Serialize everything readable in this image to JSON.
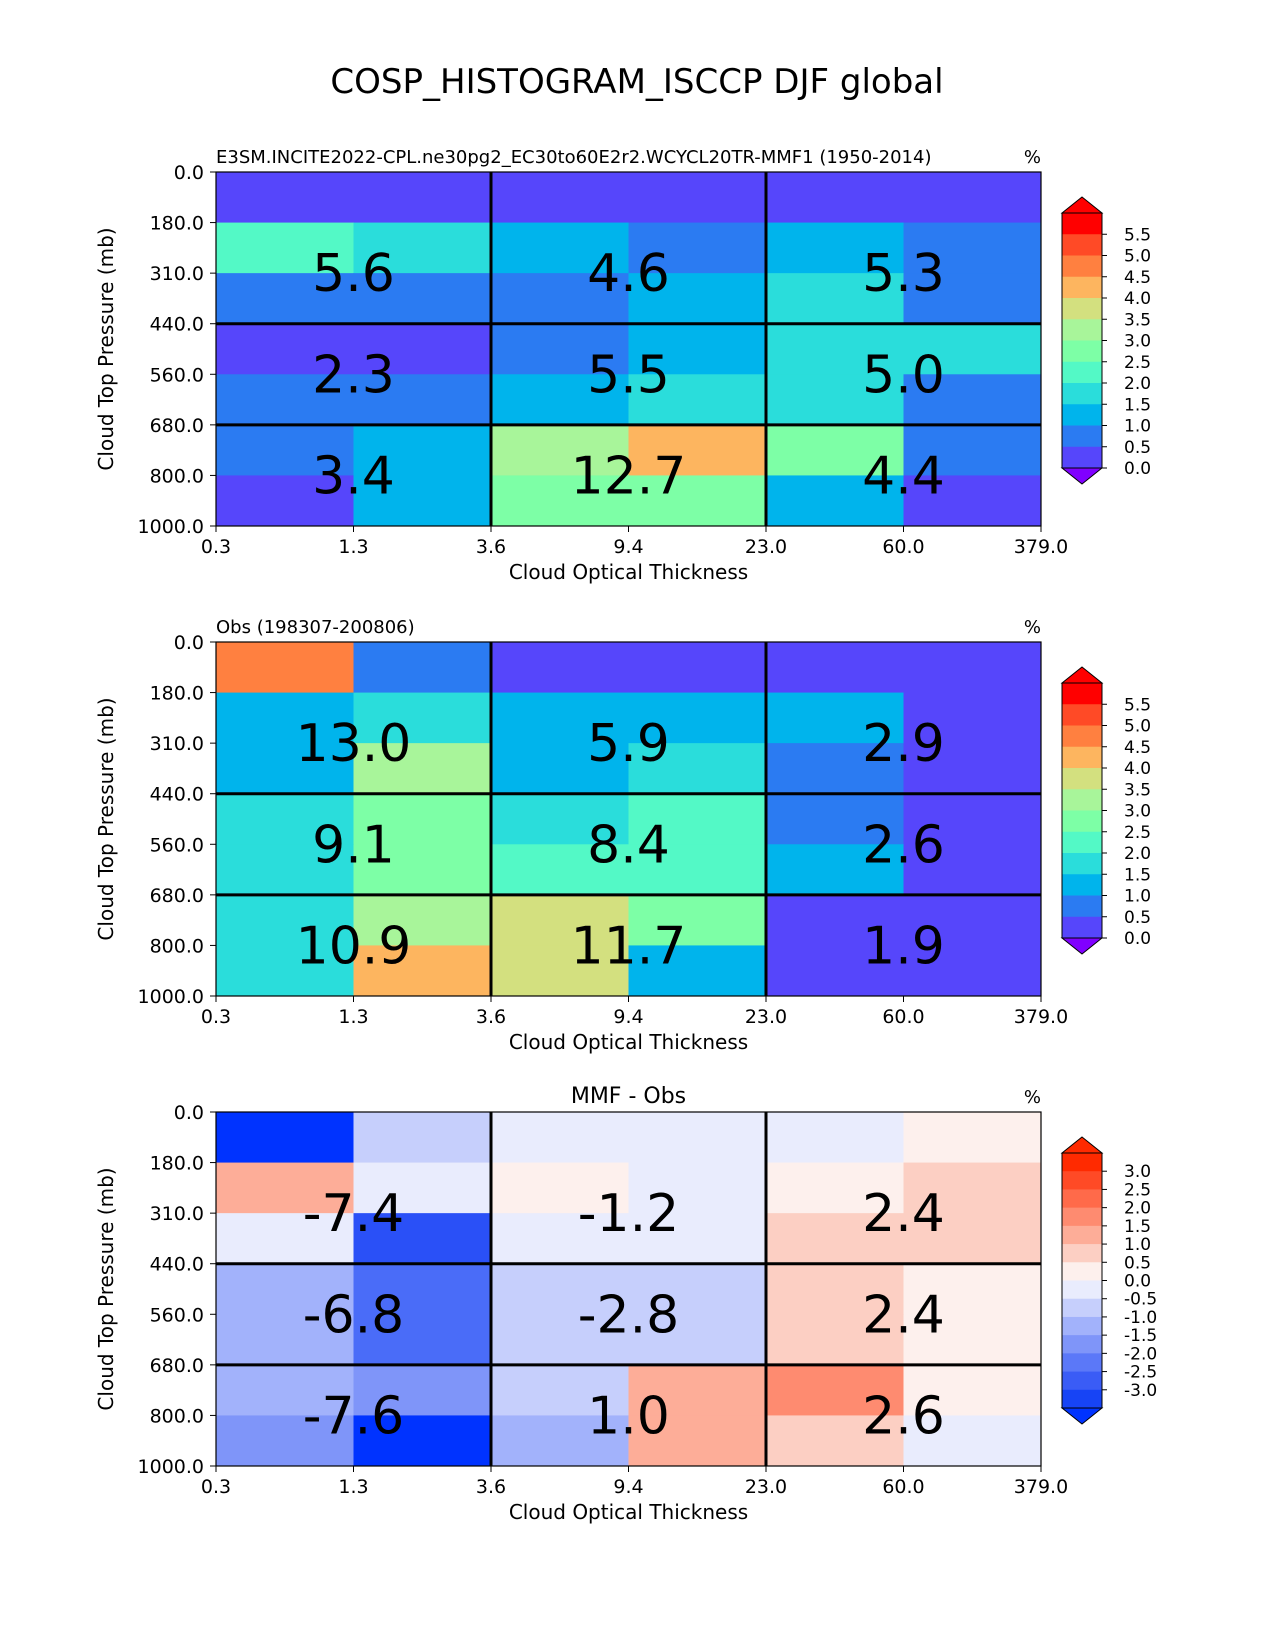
{
  "suptitle": "COSP_HISTOGRAM_ISCCP DJF global",
  "shared": {
    "xlabel": "Cloud Optical Thickness",
    "ylabel": "Cloud Top Pressure (mb)",
    "x_ticks": [
      "0.3",
      "1.3",
      "3.6",
      "9.4",
      "23.0",
      "60.0",
      "379.0"
    ],
    "y_ticks": [
      "0.0",
      "180.0",
      "310.0",
      "440.0",
      "560.0",
      "680.0",
      "800.0",
      "1000.0"
    ]
  },
  "chart_data": [
    {
      "type": "heatmap",
      "title_left": "E3SM.INCITE2022-CPL.ne30pg2_EC30to60E2r2.WCYCL20TR-MMF1 (1950-2014)",
      "title_center": "",
      "units": "%",
      "xlabel": "Cloud Optical Thickness",
      "ylabel": "Cloud Top Pressure (mb)",
      "colorbar": {
        "ticks": [
          "5.5",
          "5.0",
          "4.5",
          "4.0",
          "3.5",
          "3.0",
          "2.5",
          "2.0",
          "1.5",
          "1.0",
          "0.5",
          "0.0"
        ],
        "colors": [
          "#ff0000",
          "#ff4a26",
          "#ff8040",
          "#fdb55f",
          "#d3e07f",
          "#a8f59a",
          "#7dffa6",
          "#53f9c6",
          "#2adddb",
          "#00b4ec",
          "#2b7bf2",
          "#5646fb"
        ],
        "extend_top": "#ff0000",
        "extend_bottom": "#8000ff"
      },
      "cell_colors": [
        [
          "#5646fb",
          "#5646fb",
          "#5646fb",
          "#5646fb",
          "#5646fb",
          "#5646fb"
        ],
        [
          "#53f9c6",
          "#2adddb",
          "#00b4ec",
          "#2b7bf2",
          "#00b4ec",
          "#2b7bf2"
        ],
        [
          "#2b7bf2",
          "#2b7bf2",
          "#2b7bf2",
          "#00b4ec",
          "#2adddb",
          "#2b7bf2"
        ],
        [
          "#5646fb",
          "#5646fb",
          "#2b7bf2",
          "#00b4ec",
          "#2adddb",
          "#2adddb"
        ],
        [
          "#2b7bf2",
          "#2b7bf2",
          "#00b4ec",
          "#2adddb",
          "#2adddb",
          "#2b7bf2"
        ],
        [
          "#2b7bf2",
          "#00b4ec",
          "#a8f59a",
          "#fdb55f",
          "#7dffa6",
          "#2b7bf2"
        ],
        [
          "#5646fb",
          "#00b4ec",
          "#7dffa6",
          "#7dffa6",
          "#00b4ec",
          "#5646fb"
        ]
      ],
      "group_labels": [
        [
          "5.6",
          "4.6",
          "5.3"
        ],
        [
          "2.3",
          "5.5",
          "5.0"
        ],
        [
          "3.4",
          "12.7",
          "4.4"
        ]
      ]
    },
    {
      "type": "heatmap",
      "title_left": "Obs (198307-200806)",
      "title_center": "",
      "units": "%",
      "xlabel": "Cloud Optical Thickness",
      "ylabel": "Cloud Top Pressure (mb)",
      "colorbar": {
        "ticks": [
          "5.5",
          "5.0",
          "4.5",
          "4.0",
          "3.5",
          "3.0",
          "2.5",
          "2.0",
          "1.5",
          "1.0",
          "0.5",
          "0.0"
        ],
        "colors": [
          "#ff0000",
          "#ff4a26",
          "#ff8040",
          "#fdb55f",
          "#d3e07f",
          "#a8f59a",
          "#7dffa6",
          "#53f9c6",
          "#2adddb",
          "#00b4ec",
          "#2b7bf2",
          "#5646fb"
        ],
        "extend_top": "#ff0000",
        "extend_bottom": "#8000ff"
      },
      "cell_colors": [
        [
          "#ff8040",
          "#2b7bf2",
          "#5646fb",
          "#5646fb",
          "#5646fb",
          "#5646fb"
        ],
        [
          "#00b4ec",
          "#2adddb",
          "#00b4ec",
          "#00b4ec",
          "#00b4ec",
          "#5646fb"
        ],
        [
          "#00b4ec",
          "#a8f59a",
          "#00b4ec",
          "#2adddb",
          "#2b7bf2",
          "#5646fb"
        ],
        [
          "#2adddb",
          "#7dffa6",
          "#2adddb",
          "#53f9c6",
          "#2b7bf2",
          "#5646fb"
        ],
        [
          "#2adddb",
          "#7dffa6",
          "#53f9c6",
          "#53f9c6",
          "#00b4ec",
          "#5646fb"
        ],
        [
          "#2adddb",
          "#a8f59a",
          "#d3e07f",
          "#7dffa6",
          "#5646fb",
          "#5646fb"
        ],
        [
          "#2adddb",
          "#fdb55f",
          "#d3e07f",
          "#00b4ec",
          "#5646fb",
          "#5646fb"
        ]
      ],
      "group_labels": [
        [
          "13.0",
          "5.9",
          "2.9"
        ],
        [
          "9.1",
          "8.4",
          "2.6"
        ],
        [
          "10.9",
          "11.7",
          "1.9"
        ]
      ]
    },
    {
      "type": "heatmap",
      "title_left": "",
      "title_center": "MMF - Obs",
      "units": "%",
      "xlabel": "Cloud Optical Thickness",
      "ylabel": "Cloud Top Pressure (mb)",
      "colorbar": {
        "ticks": [
          "3.0",
          "2.5",
          "2.0",
          "1.5",
          "1.0",
          "0.5",
          "0.0",
          "-0.5",
          "-1.0",
          "-1.5",
          "-2.0",
          "-2.5",
          "-3.0"
        ],
        "colors": [
          "#ff2a00",
          "#ff4a26",
          "#ff6a4a",
          "#fe8b70",
          "#fdad98",
          "#fccfc3",
          "#fdf0ed",
          "#e9ecfd",
          "#c6cffc",
          "#a2b2fb",
          "#7f95f9",
          "#5b78f8",
          "#3a5cf6",
          "#1744f5"
        ],
        "extend_top": "#ff2a00",
        "extend_bottom": "#0033ff"
      },
      "cell_colors": [
        [
          "#0033ff",
          "#c6cffc",
          "#e9ecfd",
          "#e9ecfd",
          "#e9ecfd",
          "#fdf0ed"
        ],
        [
          "#fdad98",
          "#e9ecfd",
          "#fdf0ed",
          "#e9ecfd",
          "#fdf0ed",
          "#fccfc3"
        ],
        [
          "#e9ecfd",
          "#2a50f7",
          "#e9ecfd",
          "#e9ecfd",
          "#fccfc3",
          "#fccfc3"
        ],
        [
          "#a2b2fb",
          "#4a6cf8",
          "#c6cffc",
          "#c6cffc",
          "#fccfc3",
          "#fdf0ed"
        ],
        [
          "#a2b2fb",
          "#4a6cf8",
          "#c6cffc",
          "#c6cffc",
          "#fccfc3",
          "#fdf0ed"
        ],
        [
          "#a2b2fb",
          "#7f95f9",
          "#c6cffc",
          "#fdad98",
          "#fe8b70",
          "#fdf0ed"
        ],
        [
          "#7f95f9",
          "#0033ff",
          "#a2b2fb",
          "#fdad98",
          "#fccfc3",
          "#e9ecfd"
        ]
      ],
      "group_labels": [
        [
          "-7.4",
          "-1.2",
          "2.4"
        ],
        [
          "-6.8",
          "-2.8",
          "2.4"
        ],
        [
          "-7.6",
          "1.0",
          "2.6"
        ]
      ]
    }
  ]
}
